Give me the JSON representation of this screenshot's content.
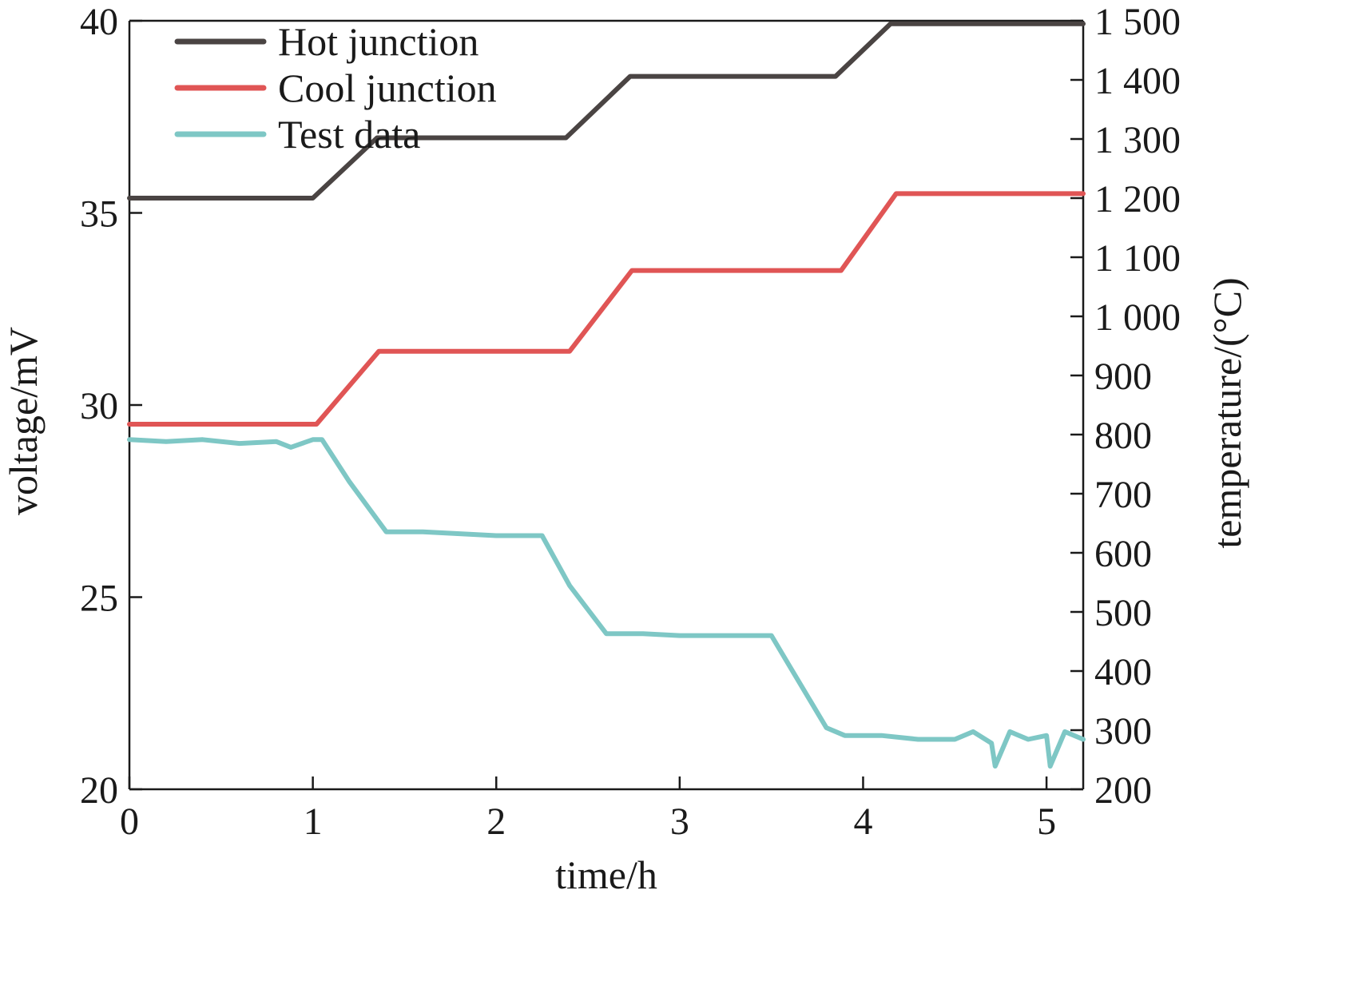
{
  "chart_data": {
    "type": "line",
    "xlabel": "time/h",
    "ylabel": "voltage/mV",
    "y2label": "temperature/(°C)",
    "xlim": [
      0,
      5.2
    ],
    "ylim": [
      20,
      40
    ],
    "y2lim": [
      200,
      1500
    ],
    "x_ticks": [
      0,
      1,
      2,
      3,
      4,
      5
    ],
    "x_tick_labels": [
      "0",
      "1",
      "2",
      "3",
      "4",
      "5"
    ],
    "y_ticks": [
      20,
      25,
      30,
      35,
      40
    ],
    "y_tick_labels": [
      "20",
      "25",
      "30",
      "35",
      "40"
    ],
    "y2_ticks": [
      200,
      300,
      400,
      500,
      600,
      700,
      800,
      900,
      1000,
      1100,
      1200,
      1300,
      1400,
      1500
    ],
    "y2_tick_labels": [
      "200",
      "300",
      "400",
      "500",
      "600",
      "700",
      "800",
      "900",
      "1 000",
      "1 100",
      "1 200",
      "1 300",
      "1 400",
      "1 500"
    ],
    "grid": false,
    "legend_position": "top-left",
    "series": [
      {
        "name": "Hot junction",
        "axis": "right",
        "color": "#4a4443",
        "x": [
          0,
          1.0,
          1.35,
          2.38,
          2.73,
          3.85,
          4.15,
          5.2
        ],
        "y": [
          1200,
          1200,
          1302,
          1302,
          1406,
          1406,
          1495,
          1495
        ]
      },
      {
        "name": "Cool junction",
        "axis": "left",
        "color": "#e05555",
        "x": [
          0,
          1.02,
          1.36,
          2.4,
          2.74,
          3.88,
          4.18,
          5.2
        ],
        "y": [
          29.5,
          29.5,
          31.4,
          31.4,
          33.5,
          33.5,
          35.5,
          35.5
        ]
      },
      {
        "name": "Test data",
        "axis": "left",
        "color": "#7ec7c5",
        "x": [
          0,
          0.2,
          0.4,
          0.6,
          0.8,
          0.88,
          1.0,
          1.05,
          1.2,
          1.4,
          1.6,
          1.8,
          2.0,
          2.2,
          2.25,
          2.4,
          2.6,
          2.8,
          3.0,
          3.2,
          3.4,
          3.5,
          3.6,
          3.8,
          3.9,
          4.1,
          4.3,
          4.5,
          4.6,
          4.7,
          4.72,
          4.8,
          4.9,
          5.0,
          5.02,
          5.1,
          5.2
        ],
        "y": [
          29.1,
          29.05,
          29.1,
          29.0,
          29.05,
          28.9,
          29.1,
          29.1,
          28.0,
          26.7,
          26.7,
          26.65,
          26.6,
          26.6,
          26.6,
          25.3,
          24.05,
          24.05,
          24.0,
          24.0,
          24.0,
          24.0,
          23.2,
          21.6,
          21.4,
          21.4,
          21.3,
          21.3,
          21.5,
          21.2,
          20.6,
          21.5,
          21.3,
          21.4,
          20.6,
          21.5,
          21.3
        ]
      }
    ]
  }
}
